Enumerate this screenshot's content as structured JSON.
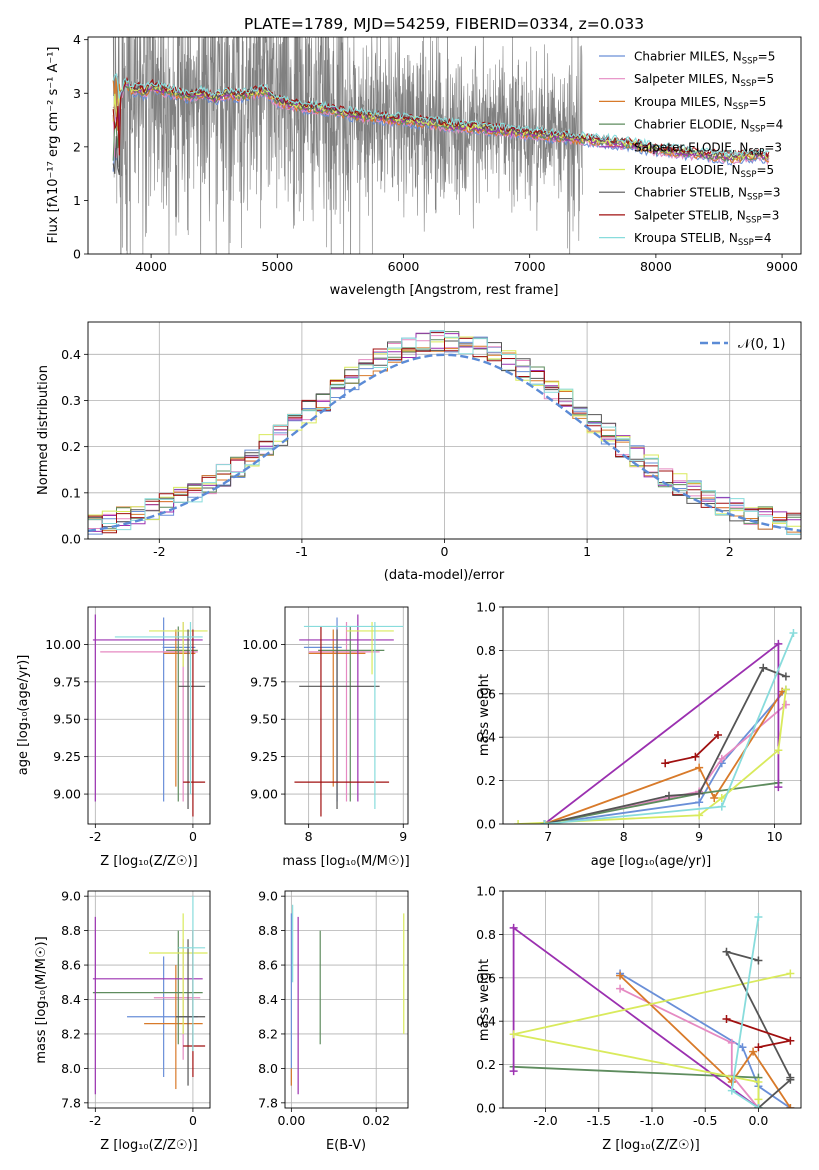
{
  "colors": {
    "Chabrier MILES": "#6a8fd8",
    "Salpeter MILES": "#e58ac2",
    "Kroupa MILES": "#d87a2a",
    "Chabrier ELODIE": "#5e8c5e",
    "Salpeter ELODIE": "#9b30b0",
    "Kroupa ELODIE": "#d9ea5c",
    "Chabrier STELIB": "#555555",
    "Salpeter STELIB": "#a01010",
    "Kroupa STELIB": "#88dcdc",
    "data": "#808080",
    "gaussian": "#5b8bd6"
  },
  "models": [
    {
      "name": "Chabrier MILES",
      "nssp": "5"
    },
    {
      "name": "Salpeter MILES",
      "nssp": "5"
    },
    {
      "name": "Kroupa MILES",
      "nssp": "5"
    },
    {
      "name": "Chabrier ELODIE",
      "nssp": "4"
    },
    {
      "name": "Salpeter ELODIE",
      "nssp": "3"
    },
    {
      "name": "Kroupa ELODIE",
      "nssp": "5"
    },
    {
      "name": "Chabrier STELIB",
      "nssp": "3"
    },
    {
      "name": "Salpeter STELIB",
      "nssp": "3"
    },
    {
      "name": "Kroupa STELIB",
      "nssp": "4"
    }
  ],
  "chart_data": [
    {
      "id": "spectrum",
      "type": "line",
      "title": "PLATE=1789, MJD=54259, FIBERID=0334, z=0.033",
      "xlabel": "wavelength [Angstrom, rest frame]",
      "ylabel": "Flux [fλ10⁻¹⁷ erg cm⁻² s⁻¹ A⁻¹]",
      "xlim": [
        3500,
        9150
      ],
      "ylim": [
        0,
        4.05
      ],
      "xticks": [
        4000,
        5000,
        6000,
        7000,
        8000,
        9000
      ],
      "yticks": [
        0,
        1,
        2,
        3,
        4
      ],
      "legend": "top-right",
      "model_curve": {
        "x": [
          3700,
          3750,
          3800,
          3850,
          3900,
          3950,
          4000,
          4100,
          4200,
          4300,
          4400,
          4500,
          4600,
          4700,
          4800,
          4900,
          5000,
          5200,
          5400,
          5600,
          5800,
          6000,
          6200,
          6400,
          6600,
          6800,
          7000,
          7200,
          7400,
          7600,
          7800,
          8000,
          8200,
          8400,
          8600,
          8800,
          8900
        ],
        "y": [
          2.4,
          2.9,
          3.2,
          3.05,
          3.1,
          3.0,
          3.15,
          3.05,
          3.0,
          2.95,
          3.0,
          2.9,
          3.0,
          2.95,
          3.0,
          3.05,
          2.85,
          2.75,
          2.7,
          2.6,
          2.55,
          2.5,
          2.45,
          2.38,
          2.35,
          2.3,
          2.25,
          2.2,
          2.15,
          2.1,
          2.05,
          1.95,
          1.9,
          1.85,
          1.8,
          1.85,
          1.8
        ]
      },
      "data_range": [
        3700,
        7420
      ]
    },
    {
      "id": "residuals",
      "type": "line",
      "xlabel": "(data-model)/error",
      "ylabel": "Normed distribution",
      "xlim": [
        -2.5,
        2.5
      ],
      "ylim": [
        0,
        0.47
      ],
      "xticks": [
        -2,
        -1,
        0,
        1,
        2
      ],
      "yticks": [
        0.0,
        0.1,
        0.2,
        0.3,
        0.4
      ],
      "legend_label": "𝒩(0, 1)",
      "legend": "top-right"
    },
    {
      "id": "age_vs_Z",
      "type": "scatter",
      "xlabel": "Z [log₁₀(Z/Z☉)]",
      "ylabel": "age  [log₁₀(age/yr)]",
      "xlim": [
        -2.15,
        0.35
      ],
      "ylim": [
        8.8,
        10.25
      ],
      "xticks": [
        -2,
        0
      ],
      "yticks": [
        9.0,
        9.25,
        9.5,
        9.75,
        10.0
      ]
    },
    {
      "id": "age_vs_mass",
      "type": "scatter",
      "xlabel": "mass [log₁₀(M/M☉)]",
      "ylabel": "",
      "xlim": [
        7.75,
        9.05
      ],
      "ylim": [
        8.8,
        10.25
      ],
      "xticks": [
        8,
        9
      ],
      "yticks": [
        9.0,
        9.25,
        9.5,
        9.75,
        10.0
      ]
    },
    {
      "id": "massweight_vs_age",
      "type": "line",
      "xlabel": "age  [log₁₀(age/yr)]",
      "ylabel": "mass weight",
      "xlim": [
        6.4,
        10.35
      ],
      "ylim": [
        0,
        1.0
      ],
      "xticks": [
        7,
        8,
        9,
        10
      ],
      "yticks": [
        0.0,
        0.2,
        0.4,
        0.6,
        0.8,
        1.0
      ]
    },
    {
      "id": "mass_vs_Z",
      "type": "scatter",
      "xlabel": "Z [log₁₀(Z/Z☉)]",
      "ylabel": "mass [log₁₀(M/M☉)]",
      "xlim": [
        -2.15,
        0.35
      ],
      "ylim": [
        7.77,
        9.03
      ],
      "xticks": [
        -2,
        0
      ],
      "yticks": [
        7.8,
        8.0,
        8.2,
        8.4,
        8.6,
        8.8,
        9.0
      ]
    },
    {
      "id": "mass_vs_ebv",
      "type": "scatter",
      "xlabel": "E(B-V)",
      "ylabel": "",
      "xlim": [
        -0.0015,
        0.0275
      ],
      "ylim": [
        7.77,
        9.03
      ],
      "xticks": [
        0.0,
        0.02
      ],
      "yticks": [
        7.8,
        8.0,
        8.2,
        8.4,
        8.6,
        8.8,
        9.0
      ]
    },
    {
      "id": "massweight_vs_Z",
      "type": "line",
      "xlabel": "Z [log₁₀(Z/Z☉)]",
      "ylabel": "mass weight",
      "xlim": [
        -2.4,
        0.4
      ],
      "ylim": [
        0,
        1.0
      ],
      "xticks": [
        -2.0,
        -1.5,
        -1.0,
        -0.5,
        0.0
      ],
      "yticks": [
        0.0,
        0.2,
        0.4,
        0.6,
        0.8,
        1.0
      ]
    }
  ],
  "errorbars": {
    "age_vs_Z": [
      {
        "m": "Chabrier MILES",
        "x": -0.6,
        "y": 9.98,
        "xe": [
          -0.62,
          0.05
        ],
        "ye": [
          8.95,
          10.18
        ]
      },
      {
        "m": "Salpeter MILES",
        "x": -0.2,
        "y": 9.95,
        "xe": [
          -1.9,
          0.1
        ],
        "ye": [
          8.95,
          10.15
        ]
      },
      {
        "m": "Kroupa MILES",
        "x": -0.35,
        "y": 9.94,
        "xe": [
          -0.6,
          0.05
        ],
        "ye": [
          9.05,
          10.1
        ]
      },
      {
        "m": "Chabrier ELODIE",
        "x": -0.3,
        "y": 9.96,
        "xe": [
          -0.55,
          0.1
        ],
        "ye": [
          8.95,
          10.12
        ]
      },
      {
        "m": "Salpeter ELODIE",
        "x": -2.0,
        "y": 10.03,
        "xe": [
          -2.05,
          0.2
        ],
        "ye": [
          8.95,
          10.2
        ]
      },
      {
        "m": "Kroupa ELODIE",
        "x": -0.2,
        "y": 10.09,
        "xe": [
          -0.9,
          0.3
        ],
        "ye": [
          9.85,
          10.15
        ]
      },
      {
        "m": "Chabrier STELIB",
        "x": -0.1,
        "y": 9.72,
        "xe": [
          -0.3,
          0.25
        ],
        "ye": [
          8.9,
          10.1
        ]
      },
      {
        "m": "Salpeter STELIB",
        "x": 0.0,
        "y": 9.08,
        "xe": [
          -0.2,
          0.25
        ],
        "ye": [
          8.85,
          10.1
        ]
      },
      {
        "m": "Kroupa STELIB",
        "x": -0.05,
        "y": 10.05,
        "xe": [
          -1.6,
          0.2
        ],
        "ye": [
          9.0,
          10.15
        ]
      }
    ],
    "age_vs_mass": [
      {
        "m": "Chabrier MILES",
        "x": 8.3,
        "y": 9.98,
        "xe": [
          7.95,
          8.35
        ],
        "ye": [
          8.95,
          10.18
        ]
      },
      {
        "m": "Salpeter MILES",
        "x": 8.4,
        "y": 9.95,
        "xe": [
          8.0,
          8.75
        ],
        "ye": [
          8.95,
          10.15
        ]
      },
      {
        "m": "Kroupa MILES",
        "x": 8.26,
        "y": 9.94,
        "xe": [
          8.0,
          8.6
        ],
        "ye": [
          9.05,
          10.1
        ]
      },
      {
        "m": "Chabrier ELODIE",
        "x": 8.44,
        "y": 9.96,
        "xe": [
          8.1,
          8.8
        ],
        "ye": [
          8.95,
          10.12
        ]
      },
      {
        "m": "Salpeter ELODIE",
        "x": 8.52,
        "y": 10.03,
        "xe": [
          7.9,
          8.9
        ],
        "ye": [
          8.95,
          10.2
        ]
      },
      {
        "m": "Kroupa ELODIE",
        "x": 8.67,
        "y": 10.09,
        "xe": [
          8.4,
          8.9
        ],
        "ye": [
          9.8,
          10.15
        ]
      },
      {
        "m": "Chabrier STELIB",
        "x": 8.3,
        "y": 9.72,
        "xe": [
          7.9,
          8.75
        ],
        "ye": [
          8.9,
          10.1
        ]
      },
      {
        "m": "Salpeter STELIB",
        "x": 8.13,
        "y": 9.08,
        "xe": [
          7.85,
          8.85
        ],
        "ye": [
          8.85,
          10.12
        ]
      },
      {
        "m": "Kroupa STELIB",
        "x": 8.7,
        "y": 10.12,
        "xe": [
          7.95,
          9.0
        ],
        "ye": [
          8.9,
          10.15
        ]
      }
    ],
    "mass_vs_Z": [
      {
        "m": "Chabrier MILES",
        "x": -0.6,
        "y": 8.3,
        "xe": [
          -1.35,
          0.1
        ],
        "ye": [
          7.95,
          8.65
        ]
      },
      {
        "m": "Salpeter MILES",
        "x": -0.2,
        "y": 8.41,
        "xe": [
          -0.8,
          0.15
        ],
        "ye": [
          8.05,
          8.75
        ]
      },
      {
        "m": "Kroupa MILES",
        "x": -0.35,
        "y": 8.26,
        "xe": [
          -1.0,
          0.2
        ],
        "ye": [
          7.88,
          8.6
        ]
      },
      {
        "m": "Chabrier ELODIE",
        "x": -0.3,
        "y": 8.44,
        "xe": [
          -2.05,
          0.2
        ],
        "ye": [
          8.14,
          8.8
        ]
      },
      {
        "m": "Salpeter ELODIE",
        "x": -2.0,
        "y": 8.52,
        "xe": [
          -2.05,
          0.2
        ],
        "ye": [
          7.85,
          8.88
        ]
      },
      {
        "m": "Kroupa ELODIE",
        "x": -0.2,
        "y": 8.67,
        "xe": [
          -0.9,
          0.3
        ],
        "ye": [
          8.2,
          8.9
        ]
      },
      {
        "m": "Chabrier STELIB",
        "x": -0.1,
        "y": 8.3,
        "xe": [
          -0.35,
          0.25
        ],
        "ye": [
          7.9,
          8.75
        ]
      },
      {
        "m": "Salpeter STELIB",
        "x": 0.0,
        "y": 8.13,
        "xe": [
          -0.2,
          0.25
        ],
        "ye": [
          7.95,
          8.8
        ]
      },
      {
        "m": "Kroupa STELIB",
        "x": 0.0,
        "y": 8.7,
        "xe": [
          -0.3,
          0.25
        ],
        "ye": [
          8.1,
          9.0
        ]
      }
    ],
    "mass_vs_ebv": [
      {
        "m": "Chabrier MILES",
        "x": 0.0,
        "y": 8.4,
        "xe": [
          0.0,
          0.0
        ],
        "ye": [
          7.9,
          8.9
        ]
      },
      {
        "m": "Kroupa MILES",
        "x": 0.0,
        "y": 7.95,
        "xe": [
          0.0,
          0.0
        ],
        "ye": [
          7.9,
          8.0
        ]
      },
      {
        "m": "Salpeter ELODIE",
        "x": 0.0016,
        "y": 8.52,
        "xe": [
          0.0016,
          0.0016
        ],
        "ye": [
          7.85,
          8.88
        ]
      },
      {
        "m": "Chabrier ELODIE",
        "x": 0.0068,
        "y": 8.44,
        "xe": [
          0.0068,
          0.0068
        ],
        "ye": [
          8.14,
          8.8
        ]
      },
      {
        "m": "Kroupa ELODIE",
        "x": 0.0265,
        "y": 8.67,
        "xe": [
          0.0265,
          0.0265
        ],
        "ye": [
          8.2,
          8.9
        ]
      },
      {
        "m": "Kroupa STELIB",
        "x": 0.0003,
        "y": 8.7,
        "xe": [
          0.0003,
          0.0003
        ],
        "ye": [
          8.5,
          8.95
        ]
      }
    ]
  },
  "weights": {
    "Chabrier MILES": {
      "age": [
        6.95,
        9.0,
        9.3,
        10.15
      ],
      "w": [
        0.0,
        0.1,
        0.28,
        0.62
      ],
      "Z": [
        0.3,
        0.0,
        -0.15,
        -1.3
      ]
    },
    "Salpeter MILES": {
      "age": [
        6.95,
        9.0,
        9.3,
        10.15
      ],
      "w": [
        0.0,
        0.15,
        0.3,
        0.55
      ],
      "Z": [
        0.0,
        -0.25,
        -0.25,
        -1.3
      ]
    },
    "Kroupa MILES": {
      "age": [
        6.95,
        9.0,
        9.2,
        10.1
      ],
      "w": [
        0.0,
        0.26,
        0.12,
        0.61
      ],
      "Z": [
        0.3,
        -0.05,
        -0.25,
        -1.3
      ]
    },
    "Chabrier ELODIE": {
      "age": [
        6.95,
        9.0,
        10.05
      ],
      "w": [
        0.0,
        0.14,
        0.19
      ],
      "Z": [
        0.0,
        0.0,
        -2.3
      ]
    },
    "Salpeter ELODIE": {
      "age": [
        6.95,
        10.05,
        10.05
      ],
      "w": [
        0.0,
        0.83,
        0.17
      ],
      "Z": [
        0.0,
        -2.3,
        -2.3
      ]
    },
    "Kroupa ELODIE": {
      "age": [
        6.6,
        9.0,
        9.3,
        10.05,
        10.15
      ],
      "w": [
        0.0,
        0.04,
        0.12,
        0.34,
        0.62
      ],
      "Z": [
        0.0,
        0.0,
        0.0,
        -2.3,
        0.3
      ]
    },
    "Chabrier STELIB": {
      "age": [
        6.95,
        8.6,
        9.0,
        9.85,
        10.15
      ],
      "w": [
        0.0,
        0.13,
        0.14,
        0.72,
        0.68
      ],
      "Z": [
        0.0,
        0.3,
        0.3,
        -0.3,
        0.0
      ]
    },
    "Salpeter STELIB": {
      "age": [
        8.55,
        8.95,
        9.25
      ],
      "w": [
        0.28,
        0.31,
        0.41
      ],
      "Z": [
        0.0,
        0.3,
        -0.3
      ]
    },
    "Kroupa STELIB": {
      "age": [
        6.95,
        9.3,
        10.25
      ],
      "w": [
        0.0,
        0.08,
        0.88
      ],
      "Z": [
        0.0,
        -0.25,
        -0.0
      ]
    }
  }
}
